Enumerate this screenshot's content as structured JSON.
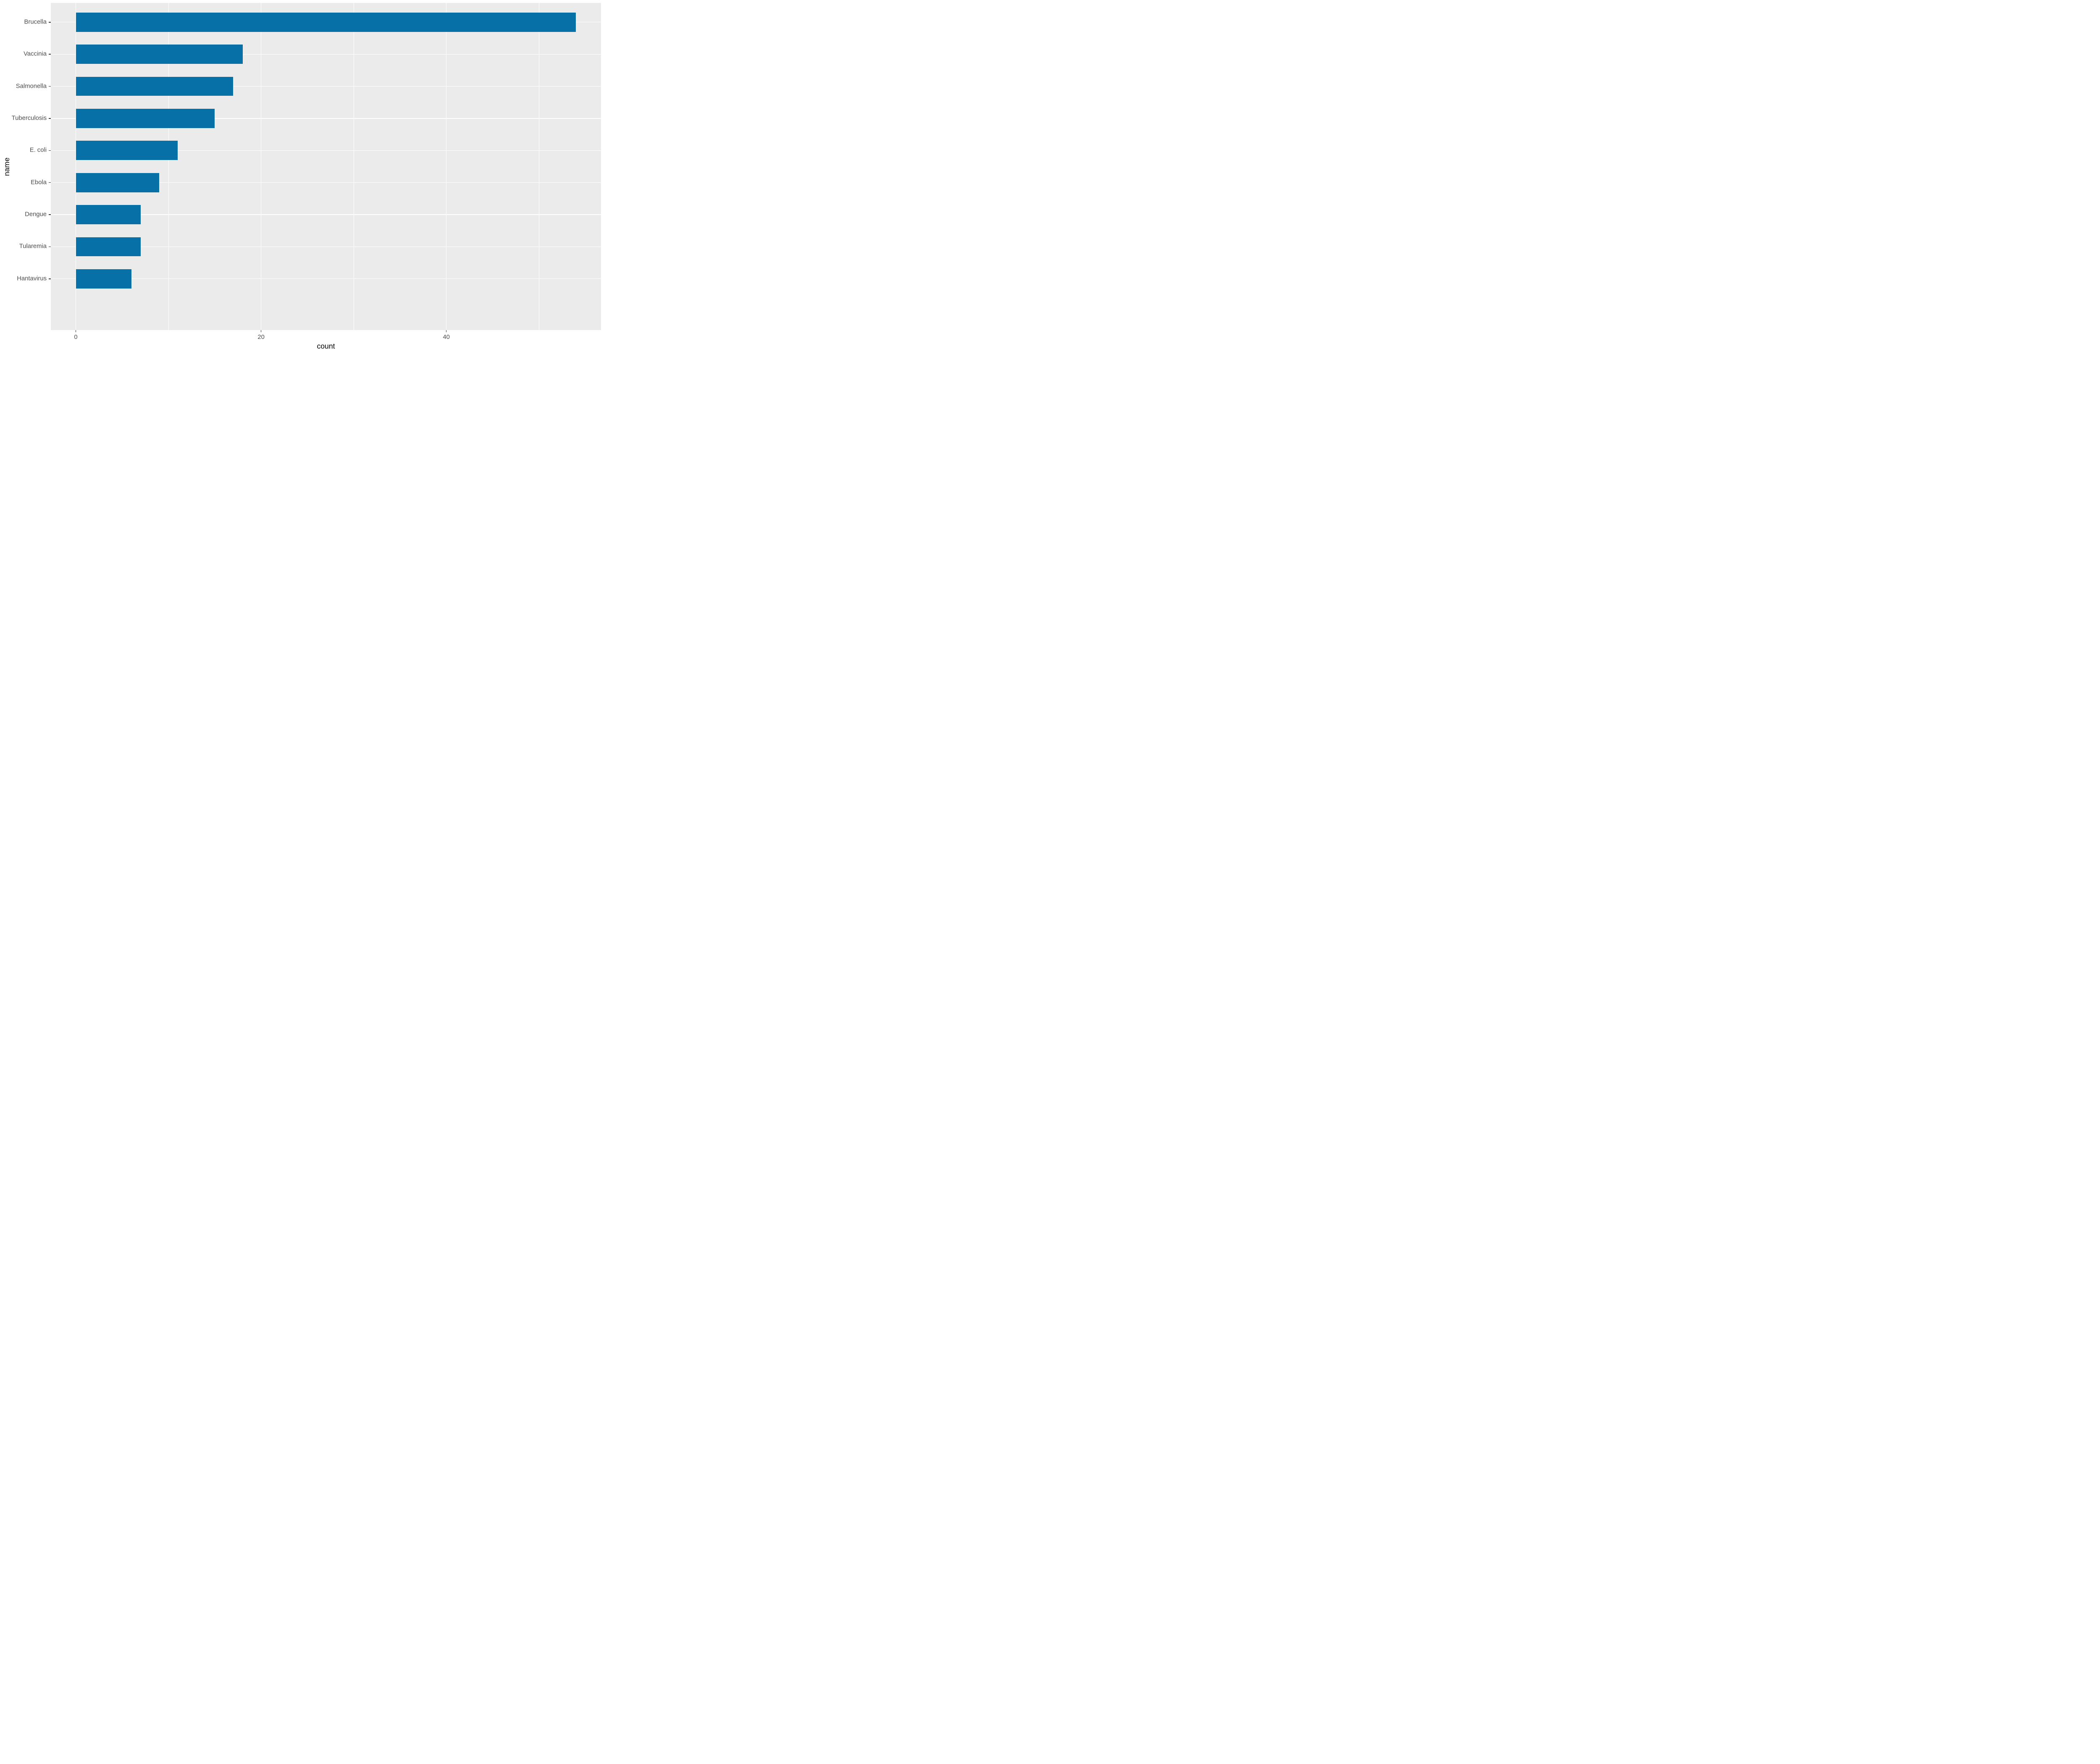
{
  "chart_data": {
    "type": "bar",
    "orientation": "horizontal",
    "title": "",
    "xlabel": "count",
    "ylabel": "name",
    "categories": [
      "Brucella",
      "Vaccinia",
      "Salmonella",
      "Tuberculosis",
      "E. coli",
      "Ebola",
      "Dengue",
      "Tularemia",
      "Hantavirus"
    ],
    "values": [
      54,
      18,
      17,
      15,
      11,
      9,
      7,
      7,
      6
    ],
    "x_major_ticks": [
      0,
      20,
      40
    ],
    "x_major_tick_labels": [
      "0",
      "20",
      "40"
    ],
    "x_minor_ticks": [
      10,
      30,
      50
    ],
    "xlim": [
      -2.7,
      56.7
    ],
    "bar_width_fraction": 0.6,
    "category_padding_units": 0.6,
    "grid": true,
    "legend_position": "none",
    "colors": {
      "bar_fill": "#0770a6",
      "panel_background": "#ebebeb",
      "major_gridline": "#ffffff",
      "minor_gridline": "#ffffff",
      "tick_mark": "#333333",
      "tick_label": "#4d4d4d",
      "axis_title": "#000000",
      "figure_background": "#ffffff"
    }
  }
}
